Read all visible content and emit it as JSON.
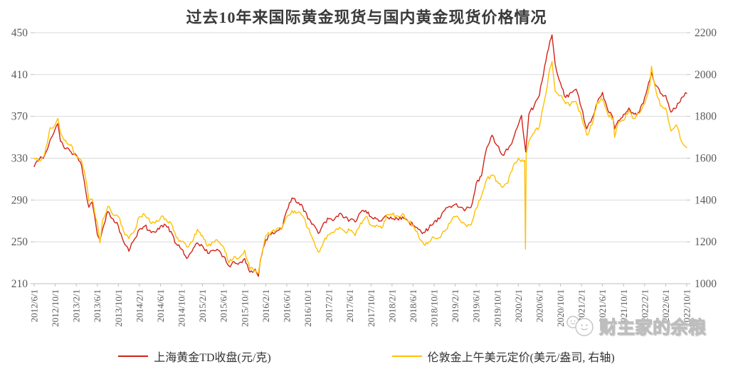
{
  "title": "过去10年来国际黄金现货与国内黄金现货价格情况",
  "watermark": {
    "text": "财主家的余粮",
    "icon": "double-smiley-face-icon"
  },
  "colors": {
    "series_red": "#D02318",
    "series_gold": "#FFC000",
    "grid": "#d9d9d9",
    "axis": "#bfbfbf",
    "tick_label": "#595959",
    "title_text": "#3a3a3a",
    "watermark": "#bdbdbd"
  },
  "chart_data": {
    "type": "line",
    "title": "过去10年来国际黄金现货与国内黄金现货价格情况",
    "xlabel": "",
    "ylabel_left": "元/克",
    "ylabel_right": "美元/盎司",
    "grid": "horizontal",
    "legend_position": "bottom",
    "left_axis": {
      "range": [
        210,
        450
      ],
      "ticks": [
        450,
        410,
        370,
        330,
        290,
        250,
        210
      ]
    },
    "right_axis": {
      "range": [
        1000,
        2200
      ],
      "ticks": [
        2200,
        2000,
        1800,
        1600,
        1400,
        1200,
        1000
      ]
    },
    "x_tick_labels": [
      "2012/6/1",
      "2012/10/1",
      "2013/2/1",
      "2013/6/1",
      "2013/10/1",
      "2014/2/1",
      "2014/6/1",
      "2014/10/1",
      "2015/2/1",
      "2015/6/1",
      "2015/10/1",
      "2016/2/1",
      "2016/6/1",
      "2016/10/1",
      "2017/2/1",
      "2017/6/1",
      "2017/10/1",
      "2018/2/1",
      "2018/6/1",
      "2018/10/1",
      "2019/2/1",
      "2019/6/1",
      "2019/10/1",
      "2020/2/1",
      "2020/6/1",
      "2020/10/1",
      "2021/2/1",
      "2021/6/1",
      "2021/10/1",
      "2022/2/1",
      "2022/6/1",
      "2022/10/1"
    ],
    "x_unit": "months since 2012/6/1",
    "series": [
      {
        "name": "上海黄金TD收盘(元/克)",
        "axis": "left",
        "color": "#D02318",
        "unit": "元/克",
        "points": [
          [
            0,
            322
          ],
          [
            1,
            329
          ],
          [
            2,
            333
          ],
          [
            3,
            347
          ],
          [
            4,
            358
          ],
          [
            4.5,
            363
          ],
          [
            5,
            346
          ],
          [
            6,
            339
          ],
          [
            7,
            336
          ],
          [
            8,
            333
          ],
          [
            9,
            323
          ],
          [
            10,
            292
          ],
          [
            10.4,
            283
          ],
          [
            11,
            288
          ],
          [
            12,
            257
          ],
          [
            12.5,
            252
          ],
          [
            13,
            262
          ],
          [
            14,
            279
          ],
          [
            15,
            272
          ],
          [
            16,
            265
          ],
          [
            17,
            250
          ],
          [
            18,
            241
          ],
          [
            19,
            252
          ],
          [
            20,
            262
          ],
          [
            21,
            265
          ],
          [
            22,
            261
          ],
          [
            23,
            259
          ],
          [
            24,
            265
          ],
          [
            25,
            266
          ],
          [
            26,
            260
          ],
          [
            27,
            248
          ],
          [
            28,
            243
          ],
          [
            29,
            234
          ],
          [
            30,
            241
          ],
          [
            31,
            249
          ],
          [
            32,
            246
          ],
          [
            33,
            239
          ],
          [
            34,
            242
          ],
          [
            35,
            242
          ],
          [
            36,
            236
          ],
          [
            37,
            227
          ],
          [
            38,
            231
          ],
          [
            39,
            230
          ],
          [
            40,
            234
          ],
          [
            41,
            221
          ],
          [
            42,
            224
          ],
          [
            42.6,
            217
          ],
          [
            43,
            233
          ],
          [
            44,
            252
          ],
          [
            45,
            257
          ],
          [
            46,
            260
          ],
          [
            47,
            262
          ],
          [
            48,
            280
          ],
          [
            49,
            292
          ],
          [
            50,
            287
          ],
          [
            51,
            284
          ],
          [
            52,
            272
          ],
          [
            53,
            267
          ],
          [
            54,
            258
          ],
          [
            55,
            268
          ],
          [
            56,
            272
          ],
          [
            57,
            271
          ],
          [
            58,
            277
          ],
          [
            59,
            273
          ],
          [
            60,
            271
          ],
          [
            61,
            269
          ],
          [
            62,
            278
          ],
          [
            63,
            280
          ],
          [
            64,
            274
          ],
          [
            65,
            272
          ],
          [
            66,
            270
          ],
          [
            67,
            274
          ],
          [
            68,
            272
          ],
          [
            69,
            272
          ],
          [
            70,
            274
          ],
          [
            71,
            270
          ],
          [
            72,
            266
          ],
          [
            73,
            262
          ],
          [
            74,
            259
          ],
          [
            75,
            263
          ],
          [
            76,
            269
          ],
          [
            77,
            272
          ],
          [
            78,
            280
          ],
          [
            79,
            284
          ],
          [
            80,
            286
          ],
          [
            81,
            283
          ],
          [
            82,
            281
          ],
          [
            83,
            283
          ],
          [
            84,
            306
          ],
          [
            85,
            313
          ],
          [
            86,
            340
          ],
          [
            87,
            352
          ],
          [
            88,
            342
          ],
          [
            89,
            333
          ],
          [
            90,
            338
          ],
          [
            91,
            348
          ],
          [
            92,
            362
          ],
          [
            92.6,
            371
          ],
          [
            93,
            352
          ],
          [
            93.4,
            336
          ],
          [
            94,
            372
          ],
          [
            95,
            380
          ],
          [
            96,
            390
          ],
          [
            97,
            418
          ],
          [
            98,
            442
          ],
          [
            98.4,
            448
          ],
          [
            99,
            420
          ],
          [
            100,
            402
          ],
          [
            101,
            388
          ],
          [
            102,
            393
          ],
          [
            103,
            396
          ],
          [
            104,
            378
          ],
          [
            105,
            358
          ],
          [
            106,
            368
          ],
          [
            107,
            383
          ],
          [
            108,
            393
          ],
          [
            109,
            376
          ],
          [
            110,
            368
          ],
          [
            110.3,
            358
          ],
          [
            111,
            366
          ],
          [
            112,
            372
          ],
          [
            113,
            378
          ],
          [
            114,
            372
          ],
          [
            115,
            374
          ],
          [
            116,
            388
          ],
          [
            117,
            405
          ],
          [
            117.3,
            412
          ],
          [
            118,
            400
          ],
          [
            119,
            392
          ],
          [
            120,
            390
          ],
          [
            121,
            374
          ],
          [
            122,
            378
          ],
          [
            123,
            388
          ],
          [
            124,
            392
          ]
        ]
      },
      {
        "name": "伦敦金上午美元定价(美元/盎司, 右轴)",
        "axis": "right",
        "color": "#FFC000",
        "unit": "美元/盎司",
        "points": [
          [
            0,
            1600
          ],
          [
            1,
            1588
          ],
          [
            2,
            1620
          ],
          [
            3,
            1745
          ],
          [
            4,
            1760
          ],
          [
            4.5,
            1790
          ],
          [
            5,
            1720
          ],
          [
            6,
            1685
          ],
          [
            7,
            1665
          ],
          [
            8,
            1610
          ],
          [
            9,
            1590
          ],
          [
            10,
            1475
          ],
          [
            10.4,
            1395
          ],
          [
            11,
            1405
          ],
          [
            12,
            1290
          ],
          [
            12.5,
            1195
          ],
          [
            13,
            1305
          ],
          [
            14,
            1370
          ],
          [
            15,
            1330
          ],
          [
            16,
            1320
          ],
          [
            17,
            1250
          ],
          [
            18,
            1215
          ],
          [
            19,
            1250
          ],
          [
            20,
            1320
          ],
          [
            21,
            1330
          ],
          [
            22,
            1295
          ],
          [
            23,
            1290
          ],
          [
            24,
            1315
          ],
          [
            25,
            1310
          ],
          [
            26,
            1290
          ],
          [
            27,
            1220
          ],
          [
            28,
            1200
          ],
          [
            29,
            1175
          ],
          [
            30,
            1200
          ],
          [
            31,
            1260
          ],
          [
            32,
            1230
          ],
          [
            33,
            1180
          ],
          [
            34,
            1200
          ],
          [
            35,
            1200
          ],
          [
            36,
            1175
          ],
          [
            37,
            1100
          ],
          [
            38,
            1130
          ],
          [
            39,
            1125
          ],
          [
            40,
            1160
          ],
          [
            41,
            1070
          ],
          [
            42,
            1065
          ],
          [
            42.6,
            1050
          ],
          [
            43,
            1110
          ],
          [
            44,
            1230
          ],
          [
            45,
            1245
          ],
          [
            46,
            1260
          ],
          [
            47,
            1260
          ],
          [
            48,
            1320
          ],
          [
            49,
            1350
          ],
          [
            50,
            1340
          ],
          [
            51,
            1325
          ],
          [
            52,
            1265
          ],
          [
            53,
            1210
          ],
          [
            54,
            1150
          ],
          [
            55,
            1200
          ],
          [
            56,
            1235
          ],
          [
            57,
            1245
          ],
          [
            58,
            1270
          ],
          [
            59,
            1250
          ],
          [
            60,
            1255
          ],
          [
            61,
            1230
          ],
          [
            62,
            1290
          ],
          [
            63,
            1320
          ],
          [
            64,
            1280
          ],
          [
            65,
            1280
          ],
          [
            66,
            1265
          ],
          [
            67,
            1330
          ],
          [
            68,
            1330
          ],
          [
            69,
            1325
          ],
          [
            70,
            1335
          ],
          [
            71,
            1300
          ],
          [
            72,
            1280
          ],
          [
            73,
            1230
          ],
          [
            74,
            1190
          ],
          [
            75,
            1200
          ],
          [
            76,
            1220
          ],
          [
            77,
            1220
          ],
          [
            78,
            1250
          ],
          [
            79,
            1290
          ],
          [
            80,
            1320
          ],
          [
            81,
            1300
          ],
          [
            82,
            1280
          ],
          [
            83,
            1280
          ],
          [
            84,
            1360
          ],
          [
            85,
            1420
          ],
          [
            86,
            1500
          ],
          [
            87,
            1520
          ],
          [
            88,
            1490
          ],
          [
            89,
            1460
          ],
          [
            90,
            1480
          ],
          [
            91,
            1560
          ],
          [
            92,
            1600
          ],
          [
            93,
            1585
          ],
          [
            93.2,
            1590
          ],
          [
            93.35,
            1165
          ],
          [
            93.5,
            1620
          ],
          [
            94,
            1680
          ],
          [
            95,
            1720
          ],
          [
            96,
            1750
          ],
          [
            97,
            1880
          ],
          [
            98,
            2030
          ],
          [
            98.4,
            2062
          ],
          [
            99,
            1920
          ],
          [
            100,
            1900
          ],
          [
            101,
            1860
          ],
          [
            102,
            1860
          ],
          [
            103,
            1870
          ],
          [
            104,
            1800
          ],
          [
            105,
            1710
          ],
          [
            106,
            1760
          ],
          [
            107,
            1870
          ],
          [
            108,
            1880
          ],
          [
            109,
            1810
          ],
          [
            110,
            1790
          ],
          [
            110.3,
            1700
          ],
          [
            111,
            1770
          ],
          [
            112,
            1780
          ],
          [
            113,
            1830
          ],
          [
            114,
            1790
          ],
          [
            115,
            1815
          ],
          [
            116,
            1860
          ],
          [
            117,
            1950
          ],
          [
            117.3,
            2040
          ],
          [
            118,
            1940
          ],
          [
            119,
            1850
          ],
          [
            120,
            1840
          ],
          [
            121,
            1730
          ],
          [
            122,
            1760
          ],
          [
            123,
            1680
          ],
          [
            124,
            1650
          ]
        ]
      }
    ]
  }
}
